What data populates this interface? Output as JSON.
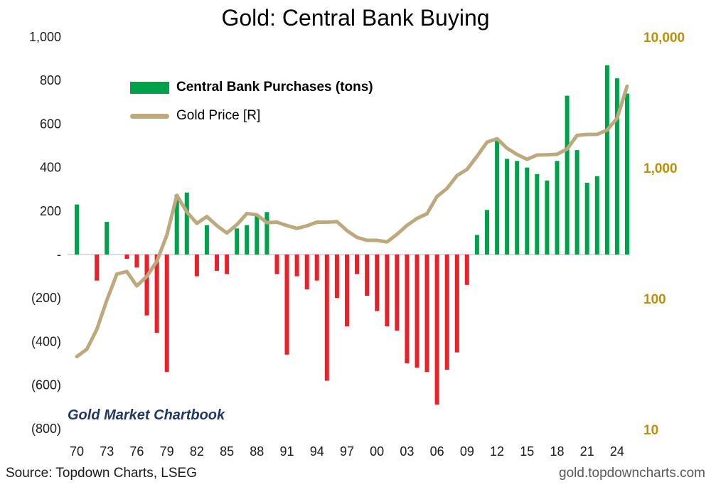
{
  "title": "Gold: Central Bank Buying",
  "legend": {
    "bar_label": "Central Bank Purchases (tons)",
    "line_label": "Gold Price [R]"
  },
  "watermark": "Gold Market Chartbook",
  "footer": {
    "source": "Source: Topdown Charts, LSEG",
    "site": "gold.topdowncharts.com"
  },
  "chart_data": {
    "type": "bar",
    "subtype": "bar+line combo, dual axis",
    "title": "Gold: Central Bank Buying",
    "years": [
      1970,
      1971,
      1972,
      1973,
      1974,
      1975,
      1976,
      1977,
      1978,
      1979,
      1980,
      1981,
      1982,
      1983,
      1984,
      1985,
      1986,
      1987,
      1988,
      1989,
      1990,
      1991,
      1992,
      1993,
      1994,
      1995,
      1996,
      1997,
      1998,
      1999,
      2000,
      2001,
      2002,
      2003,
      2004,
      2005,
      2006,
      2007,
      2008,
      2009,
      2010,
      2011,
      2012,
      2013,
      2014,
      2015,
      2016,
      2017,
      2018,
      2019,
      2020,
      2021,
      2022,
      2023,
      2024,
      2025
    ],
    "series": [
      {
        "name": "Central Bank Purchases (tons)",
        "type": "bar",
        "axis": "left",
        "values": [
          230,
          0,
          -120,
          150,
          0,
          -20,
          -60,
          -280,
          -360,
          -540,
          275,
          285,
          -100,
          135,
          -75,
          -90,
          120,
          135,
          185,
          195,
          -90,
          -460,
          -100,
          -160,
          -120,
          -580,
          -200,
          -330,
          -90,
          -190,
          -260,
          -330,
          -350,
          -500,
          -520,
          -540,
          -690,
          -530,
          -450,
          -140,
          90,
          205,
          530,
          440,
          430,
          400,
          370,
          340,
          430,
          730,
          480,
          330,
          360,
          870,
          810,
          740
        ]
      },
      {
        "name": "Gold Price [R]",
        "type": "line",
        "axis": "right",
        "values": [
          36,
          41,
          58,
          97,
          154,
          161,
          125,
          148,
          193,
          306,
          615,
          460,
          376,
          424,
          361,
          317,
          368,
          447,
          437,
          381,
          384,
          362,
          344,
          360,
          384,
          384,
          388,
          331,
          294,
          279,
          279,
          271,
          310,
          363,
          410,
          445,
          603,
          695,
          872,
          972,
          1225,
          1572,
          1669,
          1411,
          1266,
          1160,
          1251,
          1257,
          1268,
          1393,
          1770,
          1799,
          1800,
          1941,
          2390,
          4200
        ]
      }
    ],
    "left_axis": {
      "min": -800,
      "max": 1000,
      "tick_values": [
        1000,
        800,
        600,
        400,
        200,
        0,
        -200,
        -400,
        -600,
        -800
      ],
      "tick_labels": [
        "1,000",
        "800",
        "600",
        "400",
        "200",
        "-",
        "(200)",
        "(400)",
        "(600)",
        "(800)"
      ]
    },
    "right_axis": {
      "scale": "log",
      "min": 10,
      "max": 10000,
      "tick_values": [
        10000,
        1000,
        100,
        10
      ],
      "tick_labels": [
        "10,000",
        "1,000",
        "100",
        "10"
      ]
    },
    "x_axis": {
      "tick_every": 3,
      "tick_labels": [
        "70",
        "73",
        "76",
        "79",
        "82",
        "85",
        "88",
        "91",
        "94",
        "97",
        "00",
        "03",
        "06",
        "09",
        "12",
        "15",
        "18",
        "21",
        "24"
      ]
    },
    "grid": "zero line only, no gridlines",
    "legend_position": "upper-left inside plot",
    "colors": {
      "bar_positive": "#00A14B",
      "bar_negative": "#E8222A",
      "line": "#BCA97E",
      "right_axis_text": "#BF8F00",
      "axis_text": "#1a1a1a",
      "zero_line": "#c8c8c8",
      "watermark": "#1F3864",
      "site_text": "#595959"
    }
  }
}
